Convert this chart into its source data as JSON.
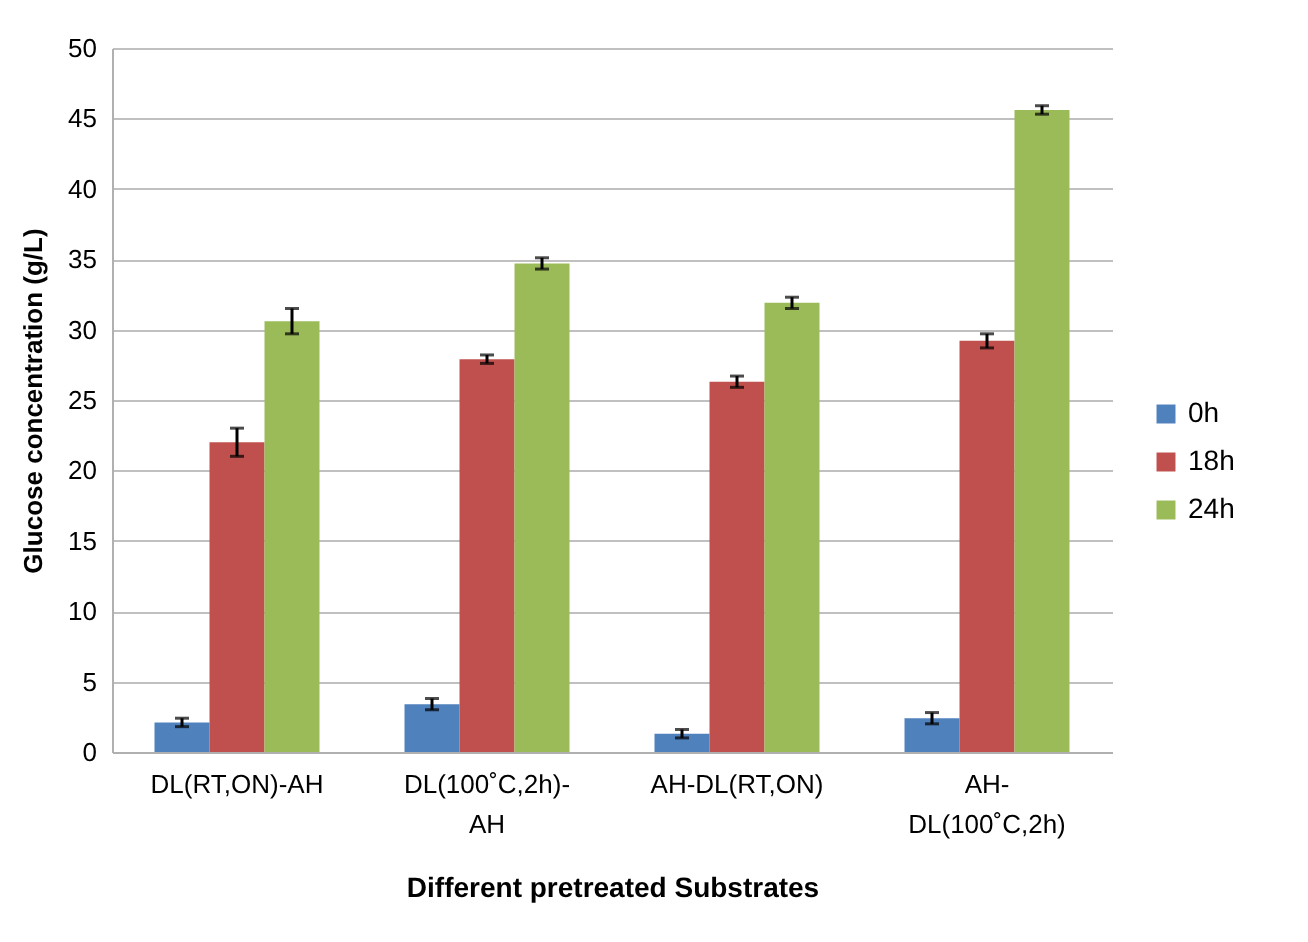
{
  "chart_data": {
    "type": "bar",
    "xlabel": "Different pretreated Substrates",
    "ylabel": "Glucose concentration (g/L)",
    "categories": [
      "DL(RT,ON)-AH",
      "DL(100˚C,2h)-AH",
      "AH-DL(RT,ON)",
      "AH-DL(100˚C,2h)"
    ],
    "series": [
      {
        "name": "0h",
        "color": "#4f81bd",
        "values": [
          2.1,
          3.4,
          1.3,
          2.4
        ],
        "errors": [
          0.3,
          0.4,
          0.3,
          0.4
        ]
      },
      {
        "name": "18h",
        "color": "#c0504d",
        "values": [
          22.0,
          27.9,
          26.3,
          29.2
        ],
        "errors": [
          1.0,
          0.3,
          0.4,
          0.5
        ]
      },
      {
        "name": "24h",
        "color": "#9bbb59",
        "values": [
          30.6,
          34.7,
          31.9,
          45.6
        ],
        "errors": [
          0.9,
          0.4,
          0.4,
          0.3
        ]
      }
    ],
    "ylim": [
      0,
      50
    ],
    "yticks": [
      0,
      5,
      10,
      15,
      20,
      25,
      30,
      35,
      40,
      45,
      50
    ],
    "grid": "y",
    "legend": "right"
  }
}
